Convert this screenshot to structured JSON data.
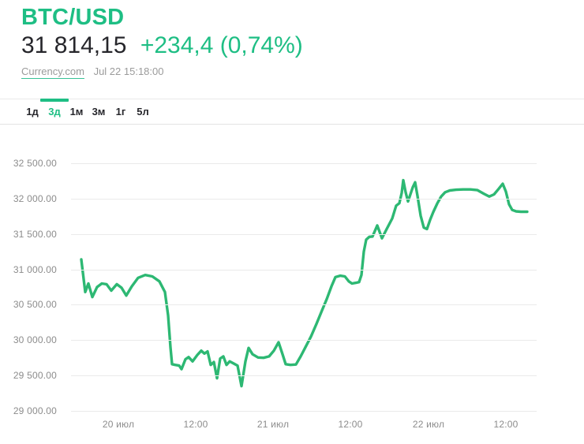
{
  "header": {
    "title": "BTC/USD",
    "price": "31 814,15",
    "change": "+234,4 (0,74%)",
    "source_label": "Currency.com",
    "timestamp": "Jul 22 15:18:00"
  },
  "tabs": {
    "items": [
      {
        "slug": "1d",
        "label": "1д",
        "active": false
      },
      {
        "slug": "3d",
        "label": "3д",
        "active": true
      },
      {
        "slug": "1m",
        "label": "1м",
        "active": false
      },
      {
        "slug": "3m",
        "label": "3м",
        "active": false
      },
      {
        "slug": "1y",
        "label": "1г",
        "active": false
      },
      {
        "slug": "5y",
        "label": "5л",
        "active": false
      }
    ]
  },
  "colors": {
    "accent_green": "#1ebe84",
    "line_green": "#2db873",
    "dark_text": "#26262b",
    "muted_gray": "#9b9b9b",
    "axis_gray": "#8c8c8c",
    "gridline": "#eaeaea"
  },
  "chart_data": {
    "type": "line",
    "title": "BTC/USD 3-day price chart",
    "ylim": [
      29000,
      32500
    ],
    "grid": true,
    "legend": "none",
    "yticks": [
      {
        "value": 32500,
        "label": "32 500.00"
      },
      {
        "value": 32000,
        "label": "32 000.00"
      },
      {
        "value": 31500,
        "label": "31 500.00"
      },
      {
        "value": 31000,
        "label": "31 000.00"
      },
      {
        "value": 30500,
        "label": "30 500.00"
      },
      {
        "value": 30000,
        "label": "30 000.00"
      },
      {
        "value": 29500,
        "label": "29 500.00"
      },
      {
        "value": 29000,
        "label": "29 000.00"
      }
    ],
    "xticks": [
      {
        "f": 0.1017,
        "label": "20 июл"
      },
      {
        "f": 0.2678,
        "label": "12:00"
      },
      {
        "f": 0.4339,
        "label": "21 июл"
      },
      {
        "f": 0.6,
        "label": "12:00"
      },
      {
        "f": 0.7678,
        "label": "22 июл"
      },
      {
        "f": 0.9339,
        "label": "12:00"
      }
    ],
    "series": [
      {
        "name": "BTC/USD",
        "points": [
          [
            0.022,
            31140
          ],
          [
            0.0305,
            30680
          ],
          [
            0.0373,
            30800
          ],
          [
            0.0458,
            30610
          ],
          [
            0.0559,
            30750
          ],
          [
            0.0661,
            30800
          ],
          [
            0.0763,
            30790
          ],
          [
            0.0864,
            30700
          ],
          [
            0.0983,
            30790
          ],
          [
            0.1085,
            30740
          ],
          [
            0.1186,
            30630
          ],
          [
            0.1305,
            30760
          ],
          [
            0.1441,
            30880
          ],
          [
            0.1593,
            30920
          ],
          [
            0.1746,
            30900
          ],
          [
            0.1898,
            30830
          ],
          [
            0.2017,
            30680
          ],
          [
            0.2085,
            30350
          ],
          [
            0.2136,
            29900
          ],
          [
            0.2169,
            29660
          ],
          [
            0.2237,
            29650
          ],
          [
            0.2322,
            29640
          ],
          [
            0.2373,
            29590
          ],
          [
            0.2458,
            29730
          ],
          [
            0.2525,
            29760
          ],
          [
            0.261,
            29700
          ],
          [
            0.2712,
            29790
          ],
          [
            0.2797,
            29850
          ],
          [
            0.2864,
            29810
          ],
          [
            0.2932,
            29840
          ],
          [
            0.3,
            29650
          ],
          [
            0.3068,
            29690
          ],
          [
            0.3136,
            29460
          ],
          [
            0.3203,
            29740
          ],
          [
            0.3271,
            29770
          ],
          [
            0.3339,
            29650
          ],
          [
            0.3407,
            29700
          ],
          [
            0.3492,
            29670
          ],
          [
            0.3576,
            29640
          ],
          [
            0.3661,
            29350
          ],
          [
            0.3746,
            29700
          ],
          [
            0.3814,
            29890
          ],
          [
            0.3898,
            29800
          ],
          [
            0.4017,
            29755
          ],
          [
            0.4136,
            29750
          ],
          [
            0.4254,
            29770
          ],
          [
            0.4356,
            29850
          ],
          [
            0.4458,
            29970
          ],
          [
            0.4542,
            29800
          ],
          [
            0.461,
            29660
          ],
          [
            0.4712,
            29650
          ],
          [
            0.4831,
            29655
          ],
          [
            0.4932,
            29770
          ],
          [
            0.5034,
            29900
          ],
          [
            0.5153,
            30050
          ],
          [
            0.5271,
            30230
          ],
          [
            0.539,
            30420
          ],
          [
            0.5492,
            30580
          ],
          [
            0.5593,
            30760
          ],
          [
            0.5678,
            30890
          ],
          [
            0.578,
            30910
          ],
          [
            0.5881,
            30900
          ],
          [
            0.5966,
            30830
          ],
          [
            0.6034,
            30800
          ],
          [
            0.6119,
            30810
          ],
          [
            0.6186,
            30820
          ],
          [
            0.6237,
            30920
          ],
          [
            0.6288,
            31250
          ],
          [
            0.6339,
            31420
          ],
          [
            0.6407,
            31460
          ],
          [
            0.6475,
            31465
          ],
          [
            0.6576,
            31620
          ],
          [
            0.6678,
            31440
          ],
          [
            0.678,
            31570
          ],
          [
            0.6898,
            31720
          ],
          [
            0.6983,
            31900
          ],
          [
            0.7051,
            31935
          ],
          [
            0.7102,
            32080
          ],
          [
            0.7136,
            32260
          ],
          [
            0.7186,
            32090
          ],
          [
            0.7237,
            31960
          ],
          [
            0.7288,
            32060
          ],
          [
            0.7339,
            32160
          ],
          [
            0.739,
            32230
          ],
          [
            0.7441,
            32040
          ],
          [
            0.7508,
            31760
          ],
          [
            0.7576,
            31590
          ],
          [
            0.7644,
            31570
          ],
          [
            0.7712,
            31700
          ],
          [
            0.778,
            31810
          ],
          [
            0.7864,
            31930
          ],
          [
            0.7949,
            32030
          ],
          [
            0.8034,
            32090
          ],
          [
            0.8136,
            32115
          ],
          [
            0.8271,
            32125
          ],
          [
            0.8424,
            32130
          ],
          [
            0.8576,
            32130
          ],
          [
            0.8729,
            32120
          ],
          [
            0.8864,
            32070
          ],
          [
            0.8983,
            32030
          ],
          [
            0.9085,
            32060
          ],
          [
            0.9186,
            32140
          ],
          [
            0.9271,
            32210
          ],
          [
            0.9339,
            32100
          ],
          [
            0.9407,
            31920
          ],
          [
            0.9475,
            31840
          ],
          [
            0.9559,
            31820
          ],
          [
            0.9661,
            31815
          ],
          [
            0.9797,
            31814
          ]
        ]
      }
    ]
  }
}
